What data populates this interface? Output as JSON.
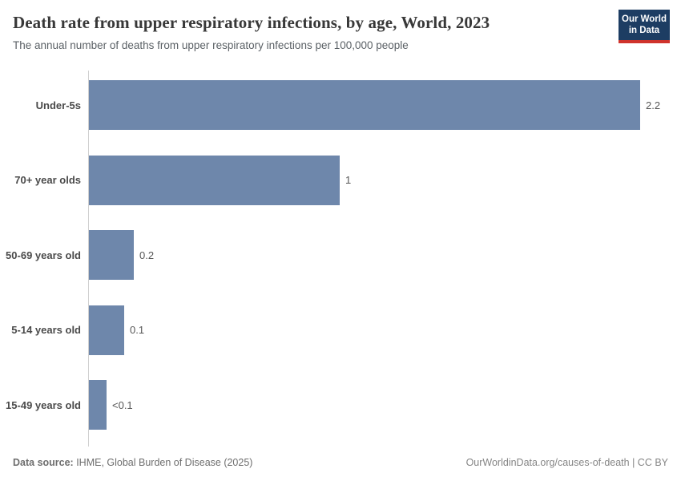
{
  "header": {
    "title": "Death rate from upper respiratory infections, by age, World, 2023",
    "subtitle": "The annual number of deaths from upper respiratory infections per 100,000 people"
  },
  "logo": {
    "line1": "Our World",
    "line2": "in Data",
    "bg_color": "#1d3d63",
    "accent_color": "#cf332c"
  },
  "chart_data": {
    "type": "bar",
    "orientation": "horizontal",
    "title": "Death rate from upper respiratory infections, by age, World, 2023",
    "subtitle": "The annual number of deaths from upper respiratory infections per 100,000 people",
    "categories": [
      "Under-5s",
      "70+ year olds",
      "50-69 years old",
      "5-14 years old",
      "15-49 years old"
    ],
    "values": [
      2.2,
      1.0,
      0.18,
      0.14,
      0.07
    ],
    "value_labels": [
      "2.2",
      "1",
      "0.2",
      "0.1",
      "<0.1"
    ],
    "bar_color": "#6e87ab",
    "xlabel": "",
    "ylabel": "",
    "xlim": [
      0,
      2.35
    ],
    "grid": false,
    "legend": false
  },
  "footer": {
    "datasource_label": "Data source:",
    "datasource_value": " IHME, Global Burden of Disease (2025)",
    "credit": "OurWorldinData.org/causes-of-death | CC BY"
  }
}
